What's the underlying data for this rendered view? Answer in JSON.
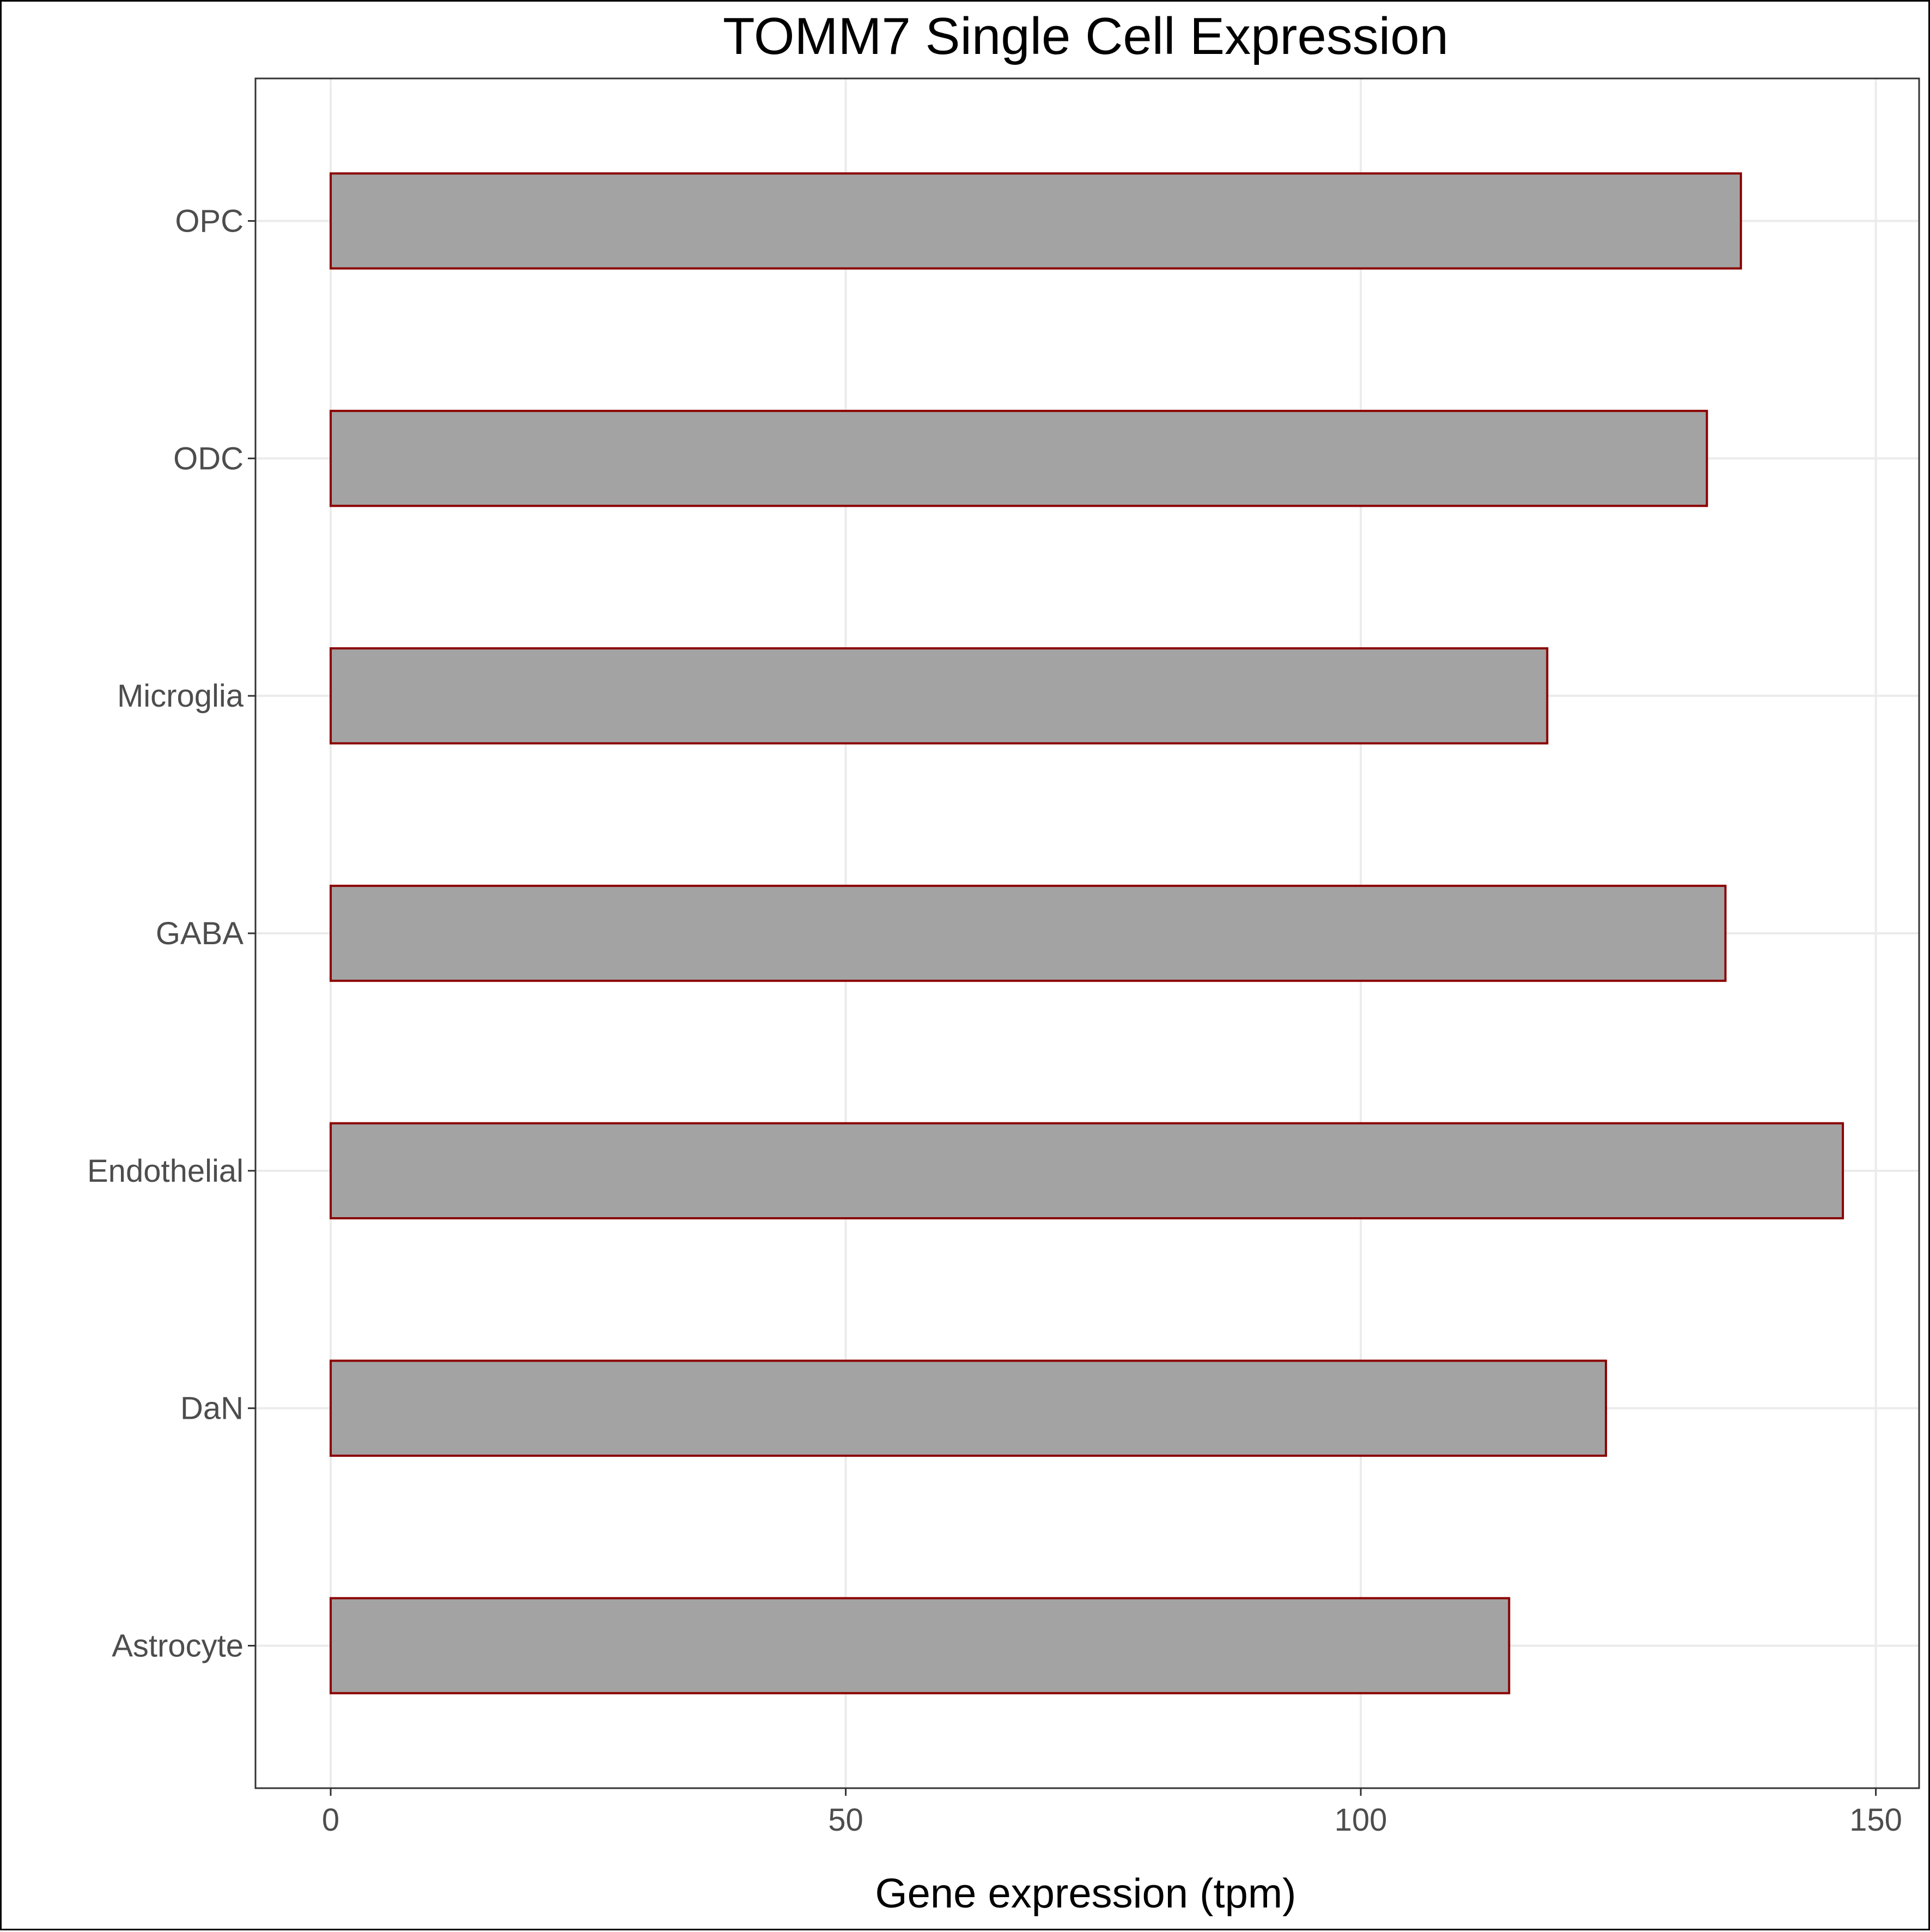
{
  "chart_data": {
    "type": "bar",
    "orientation": "horizontal",
    "title": "TOMM7 Single Cell Expression",
    "xlabel": "Gene expression (tpm)",
    "ylabel": "",
    "categories": [
      "Astrocyte",
      "DaN",
      "Endothelial",
      "GABA",
      "Microglia",
      "ODC",
      "OPC"
    ],
    "values": [
      114.4,
      123.8,
      146.8,
      135.4,
      118.1,
      133.6,
      136.9
    ],
    "xlim": [
      -7.3,
      154.2
    ],
    "xticks": [
      0,
      50,
      100,
      150
    ],
    "grid": true,
    "legend": "none",
    "colors": {
      "bar_fill": "#a3a3a3",
      "bar_outline": "#8b0000",
      "grid": "#ebebeb",
      "panel_border": "#333333"
    }
  }
}
